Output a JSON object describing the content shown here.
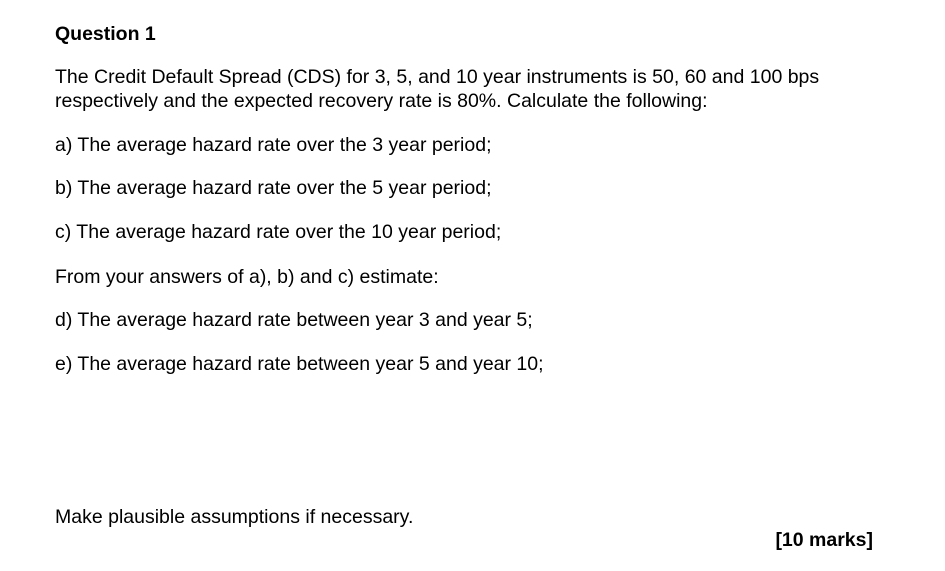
{
  "title": "Question 1",
  "intro_line1": "The Credit Default Spread (CDS) for 3, 5, and 10 year instruments is 50, 60 and 100 bps",
  "intro_line2": "respectively and the expected recovery rate is 80%. Calculate the following:",
  "items": [
    "a) The average hazard rate over the 3 year period;",
    "b) The average hazard rate over the 5 year period;",
    "c) The average hazard rate over the 10 year period;",
    "From your answers of a), b) and c) estimate:",
    "d) The average hazard rate between year 3 and year 5;",
    "e) The average hazard rate between year 5 and year 10;"
  ],
  "footer_note": "Make plausible assumptions if necessary.",
  "marks": "[10 marks]"
}
